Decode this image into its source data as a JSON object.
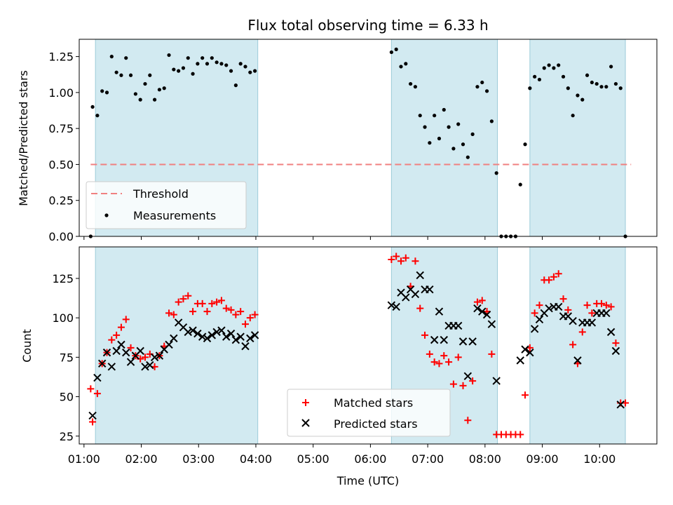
{
  "figure": {
    "title": "Flux total observing time = 6.33 h",
    "xlabel": "Time (UTC)"
  },
  "chart_data": [
    {
      "type": "scatter",
      "ylabel": "Matched/Predicted stars",
      "ylim": [
        0,
        1.37
      ],
      "yticks": [
        "0.00",
        "0.25",
        "0.50",
        "0.75",
        "1.00",
        "1.25"
      ],
      "xlim": [
        "00:55",
        "11:00"
      ],
      "shaded_intervals": [
        [
          "01:12",
          "04:02"
        ],
        [
          "06:22",
          "08:13"
        ],
        [
          "08:47",
          "10:27"
        ]
      ],
      "threshold": {
        "name": "Threshold",
        "value": 0.5,
        "x_start": "01:07",
        "x_end": "10:33",
        "color": "#f08080"
      },
      "legend": {
        "placement": "lower-left",
        "entries": [
          "Threshold",
          "Measurements"
        ]
      },
      "series": [
        {
          "name": "Measurements",
          "color": "#000000",
          "points": [
            [
              "01:07",
              0.0
            ],
            [
              "01:09",
              0.9
            ],
            [
              "01:14",
              0.84
            ],
            [
              "01:19",
              1.01
            ],
            [
              "01:24",
              1.0
            ],
            [
              "01:29",
              1.25
            ],
            [
              "01:34",
              1.14
            ],
            [
              "01:39",
              1.12
            ],
            [
              "01:44",
              1.24
            ],
            [
              "01:49",
              1.12
            ],
            [
              "01:54",
              0.99
            ],
            [
              "01:59",
              0.95
            ],
            [
              "02:04",
              1.06
            ],
            [
              "02:09",
              1.12
            ],
            [
              "02:14",
              0.95
            ],
            [
              "02:19",
              1.02
            ],
            [
              "02:24",
              1.03
            ],
            [
              "02:29",
              1.26
            ],
            [
              "02:34",
              1.16
            ],
            [
              "02:39",
              1.15
            ],
            [
              "02:44",
              1.17
            ],
            [
              "02:49",
              1.24
            ],
            [
              "02:54",
              1.13
            ],
            [
              "02:59",
              1.2
            ],
            [
              "03:04",
              1.24
            ],
            [
              "03:09",
              1.2
            ],
            [
              "03:14",
              1.24
            ],
            [
              "03:19",
              1.21
            ],
            [
              "03:24",
              1.2
            ],
            [
              "03:29",
              1.19
            ],
            [
              "03:34",
              1.15
            ],
            [
              "03:39",
              1.05
            ],
            [
              "03:44",
              1.2
            ],
            [
              "03:49",
              1.18
            ],
            [
              "03:54",
              1.14
            ],
            [
              "03:59",
              1.15
            ],
            [
              "06:22",
              1.28
            ],
            [
              "06:27",
              1.3
            ],
            [
              "06:32",
              1.18
            ],
            [
              "06:37",
              1.2
            ],
            [
              "06:42",
              1.06
            ],
            [
              "06:47",
              1.04
            ],
            [
              "06:52",
              0.84
            ],
            [
              "06:57",
              0.76
            ],
            [
              "07:02",
              0.65
            ],
            [
              "07:07",
              0.84
            ],
            [
              "07:12",
              0.68
            ],
            [
              "07:17",
              0.88
            ],
            [
              "07:22",
              0.76
            ],
            [
              "07:27",
              0.61
            ],
            [
              "07:32",
              0.78
            ],
            [
              "07:37",
              0.64
            ],
            [
              "07:42",
              0.55
            ],
            [
              "07:47",
              0.71
            ],
            [
              "07:52",
              1.04
            ],
            [
              "07:57",
              1.07
            ],
            [
              "08:02",
              1.01
            ],
            [
              "08:07",
              0.8
            ],
            [
              "08:12",
              0.44
            ],
            [
              "08:17",
              0.0
            ],
            [
              "08:22",
              0.0
            ],
            [
              "08:27",
              0.0
            ],
            [
              "08:32",
              0.0
            ],
            [
              "08:37",
              0.36
            ],
            [
              "08:42",
              0.64
            ],
            [
              "08:47",
              1.03
            ],
            [
              "08:52",
              1.11
            ],
            [
              "08:57",
              1.09
            ],
            [
              "09:02",
              1.17
            ],
            [
              "09:07",
              1.19
            ],
            [
              "09:12",
              1.17
            ],
            [
              "09:17",
              1.19
            ],
            [
              "09:22",
              1.11
            ],
            [
              "09:27",
              1.03
            ],
            [
              "09:32",
              0.84
            ],
            [
              "09:37",
              0.98
            ],
            [
              "09:42",
              0.95
            ],
            [
              "09:47",
              1.12
            ],
            [
              "09:52",
              1.07
            ],
            [
              "09:57",
              1.06
            ],
            [
              "10:02",
              1.04
            ],
            [
              "10:07",
              1.04
            ],
            [
              "10:12",
              1.18
            ],
            [
              "10:17",
              1.06
            ],
            [
              "10:22",
              1.03
            ],
            [
              "10:27",
              0.0
            ]
          ]
        }
      ]
    },
    {
      "type": "scatter",
      "ylabel": "Count",
      "ylim": [
        20,
        145
      ],
      "yticks": [
        "25",
        "50",
        "75",
        "100",
        "125"
      ],
      "xlim": [
        "00:55",
        "11:00"
      ],
      "xticks": [
        "01:00",
        "02:00",
        "03:00",
        "04:00",
        "05:00",
        "06:00",
        "07:00",
        "08:00",
        "09:00",
        "10:00"
      ],
      "shaded_intervals": [
        [
          "01:12",
          "04:02"
        ],
        [
          "06:22",
          "08:13"
        ],
        [
          "08:47",
          "10:27"
        ]
      ],
      "legend": {
        "placement": "lower-center",
        "entries": [
          "Matched stars",
          "Predicted stars"
        ]
      },
      "series": [
        {
          "name": "Matched stars",
          "marker": "+",
          "color": "#ff0000",
          "points": [
            [
              "01:07",
              55
            ],
            [
              "01:09",
              34
            ],
            [
              "01:14",
              52
            ],
            [
              "01:19",
              71
            ],
            [
              "01:24",
              78
            ],
            [
              "01:29",
              86
            ],
            [
              "01:34",
              89
            ],
            [
              "01:39",
              94
            ],
            [
              "01:44",
              99
            ],
            [
              "01:49",
              81
            ],
            [
              "01:54",
              76
            ],
            [
              "01:59",
              74
            ],
            [
              "02:04",
              75
            ],
            [
              "02:09",
              77
            ],
            [
              "02:14",
              69
            ],
            [
              "02:19",
              76
            ],
            [
              "02:24",
              82
            ],
            [
              "02:29",
              103
            ],
            [
              "02:34",
              102
            ],
            [
              "02:39",
              110
            ],
            [
              "02:44",
              112
            ],
            [
              "02:49",
              114
            ],
            [
              "02:54",
              104
            ],
            [
              "02:59",
              109
            ],
            [
              "03:04",
              109
            ],
            [
              "03:09",
              104
            ],
            [
              "03:14",
              109
            ],
            [
              "03:19",
              110
            ],
            [
              "03:24",
              111
            ],
            [
              "03:29",
              106
            ],
            [
              "03:34",
              105
            ],
            [
              "03:39",
              102
            ],
            [
              "03:44",
              104
            ],
            [
              "03:49",
              96
            ],
            [
              "03:54",
              100
            ],
            [
              "03:59",
              102
            ],
            [
              "06:22",
              137
            ],
            [
              "06:27",
              139
            ],
            [
              "06:32",
              136
            ],
            [
              "06:37",
              138
            ],
            [
              "06:42",
              120
            ],
            [
              "06:47",
              136
            ],
            [
              "06:52",
              106
            ],
            [
              "06:57",
              89
            ],
            [
              "07:02",
              77
            ],
            [
              "07:07",
              72
            ],
            [
              "07:12",
              71
            ],
            [
              "07:17",
              76
            ],
            [
              "07:22",
              72
            ],
            [
              "07:27",
              58
            ],
            [
              "07:32",
              75
            ],
            [
              "07:37",
              57
            ],
            [
              "07:42",
              35
            ],
            [
              "07:47",
              60
            ],
            [
              "07:52",
              110
            ],
            [
              "07:57",
              111
            ],
            [
              "08:02",
              104
            ],
            [
              "08:07",
              77
            ],
            [
              "08:12",
              26
            ],
            [
              "08:17",
              26
            ],
            [
              "08:22",
              26
            ],
            [
              "08:27",
              26
            ],
            [
              "08:32",
              26
            ],
            [
              "08:37",
              26
            ],
            [
              "08:42",
              51
            ],
            [
              "08:47",
              81
            ],
            [
              "08:52",
              103
            ],
            [
              "08:57",
              108
            ],
            [
              "09:02",
              124
            ],
            [
              "09:07",
              124
            ],
            [
              "09:12",
              126
            ],
            [
              "09:17",
              128
            ],
            [
              "09:22",
              112
            ],
            [
              "09:27",
              105
            ],
            [
              "09:32",
              83
            ],
            [
              "09:37",
              71
            ],
            [
              "09:42",
              91
            ],
            [
              "09:47",
              108
            ],
            [
              "09:52",
              103
            ],
            [
              "09:57",
              109
            ],
            [
              "10:02",
              109
            ],
            [
              "10:07",
              108
            ],
            [
              "10:12",
              107
            ],
            [
              "10:17",
              84
            ],
            [
              "10:22",
              46
            ],
            [
              "10:27",
              46
            ]
          ]
        },
        {
          "name": "Predicted stars",
          "marker": "x",
          "color": "#000000",
          "points": [
            [
              "01:09",
              38
            ],
            [
              "01:14",
              62
            ],
            [
              "01:19",
              71
            ],
            [
              "01:24",
              78
            ],
            [
              "01:29",
              69
            ],
            [
              "01:34",
              79
            ],
            [
              "01:39",
              83
            ],
            [
              "01:44",
              78
            ],
            [
              "01:49",
              72
            ],
            [
              "01:54",
              76
            ],
            [
              "01:59",
              79
            ],
            [
              "02:04",
              69
            ],
            [
              "02:09",
              70
            ],
            [
              "02:14",
              75
            ],
            [
              "02:19",
              76
            ],
            [
              "02:24",
              80
            ],
            [
              "02:29",
              83
            ],
            [
              "02:34",
              87
            ],
            [
              "02:39",
              97
            ],
            [
              "02:44",
              94
            ],
            [
              "02:49",
              91
            ],
            [
              "02:54",
              92
            ],
            [
              "02:59",
              90
            ],
            [
              "03:04",
              88
            ],
            [
              "03:09",
              87
            ],
            [
              "03:14",
              89
            ],
            [
              "03:19",
              91
            ],
            [
              "03:24",
              92
            ],
            [
              "03:29",
              88
            ],
            [
              "03:34",
              90
            ],
            [
              "03:39",
              86
            ],
            [
              "03:44",
              88
            ],
            [
              "03:49",
              82
            ],
            [
              "03:54",
              87
            ],
            [
              "03:59",
              89
            ],
            [
              "06:22",
              108
            ],
            [
              "06:27",
              107
            ],
            [
              "06:32",
              116
            ],
            [
              "06:37",
              113
            ],
            [
              "06:42",
              118
            ],
            [
              "06:47",
              115
            ],
            [
              "06:52",
              127
            ],
            [
              "06:57",
              118
            ],
            [
              "07:02",
              118
            ],
            [
              "07:07",
              86
            ],
            [
              "07:12",
              104
            ],
            [
              "07:17",
              86
            ],
            [
              "07:22",
              95
            ],
            [
              "07:27",
              95
            ],
            [
              "07:32",
              95
            ],
            [
              "07:37",
              85
            ],
            [
              "07:42",
              63
            ],
            [
              "07:47",
              85
            ],
            [
              "07:52",
              106
            ],
            [
              "07:57",
              104
            ],
            [
              "08:02",
              102
            ],
            [
              "08:07",
              96
            ],
            [
              "08:12",
              60
            ],
            [
              "08:37",
              73
            ],
            [
              "08:42",
              80
            ],
            [
              "08:47",
              78
            ],
            [
              "08:52",
              93
            ],
            [
              "08:57",
              99
            ],
            [
              "09:02",
              103
            ],
            [
              "09:07",
              106
            ],
            [
              "09:12",
              107
            ],
            [
              "09:17",
              107
            ],
            [
              "09:22",
              101
            ],
            [
              "09:27",
              101
            ],
            [
              "09:32",
              98
            ],
            [
              "09:37",
              73
            ],
            [
              "09:42",
              97
            ],
            [
              "09:47",
              97
            ],
            [
              "09:52",
              97
            ],
            [
              "09:57",
              103
            ],
            [
              "10:02",
              103
            ],
            [
              "10:07",
              103
            ],
            [
              "10:12",
              91
            ],
            [
              "10:17",
              79
            ],
            [
              "10:22",
              45
            ]
          ]
        }
      ]
    }
  ]
}
